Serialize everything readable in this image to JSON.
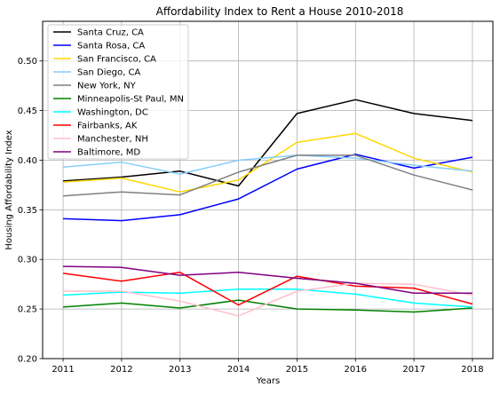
{
  "chart_data": {
    "type": "line",
    "title": "Affordability Index to Rent a House 2010-2018",
    "xlabel": "Years",
    "ylabel": "Housing Affordability Index",
    "x": [
      2011,
      2012,
      2013,
      2014,
      2015,
      2016,
      2017,
      2018
    ],
    "xlim": [
      2010.65,
      2018.35
    ],
    "ylim": [
      0.2,
      0.54
    ],
    "yticks": [
      0.2,
      0.25,
      0.3,
      0.35,
      0.4,
      0.45,
      0.5
    ],
    "ytick_labels": [
      "0.20",
      "0.25",
      "0.30",
      "0.35",
      "0.40",
      "0.45",
      "0.50"
    ],
    "xtick_labels": [
      "2011",
      "2012",
      "2013",
      "2014",
      "2015",
      "2016",
      "2017",
      "2018"
    ],
    "grid": true,
    "legend_position": "top-left",
    "series": [
      {
        "name": "Santa Cruz, CA",
        "color": "#000000",
        "values": [
          0.379,
          0.383,
          0.389,
          0.374,
          0.447,
          0.461,
          0.447,
          0.44
        ]
      },
      {
        "name": "Santa Rosa, CA",
        "color": "#0000ff",
        "values": [
          0.341,
          0.339,
          0.345,
          0.361,
          0.391,
          0.406,
          0.392,
          0.403
        ]
      },
      {
        "name": "San Francisco, CA",
        "color": "#ffd700",
        "values": [
          0.378,
          0.382,
          0.368,
          0.38,
          0.418,
          0.427,
          0.402,
          0.388
        ]
      },
      {
        "name": "San Diego, CA",
        "color": "#87cefa",
        "values": [
          0.393,
          0.398,
          0.386,
          0.4,
          0.405,
          0.402,
          0.395,
          0.389
        ]
      },
      {
        "name": "New York, NY",
        "color": "#808080",
        "values": [
          0.364,
          0.368,
          0.365,
          0.388,
          0.405,
          0.405,
          0.385,
          0.37
        ]
      },
      {
        "name": "Minneapolis-St Paul, MN",
        "color": "#008000",
        "values": [
          0.252,
          0.256,
          0.251,
          0.259,
          0.25,
          0.249,
          0.247,
          0.251
        ]
      },
      {
        "name": "Washington, DC",
        "color": "#00ffff",
        "values": [
          0.264,
          0.267,
          0.266,
          0.27,
          0.27,
          0.265,
          0.256,
          0.252
        ]
      },
      {
        "name": "Fairbanks, AK",
        "color": "#ff0000",
        "values": [
          0.286,
          0.278,
          0.287,
          0.254,
          0.283,
          0.273,
          0.271,
          0.255
        ]
      },
      {
        "name": "Manchester, NH",
        "color": "#ffc0cb",
        "values": [
          0.268,
          0.268,
          0.258,
          0.243,
          0.268,
          0.276,
          0.275,
          0.264
        ]
      },
      {
        "name": "Baltimore, MD",
        "color": "#800080",
        "values": [
          0.293,
          0.292,
          0.284,
          0.287,
          0.281,
          0.276,
          0.266,
          0.266
        ]
      }
    ]
  }
}
